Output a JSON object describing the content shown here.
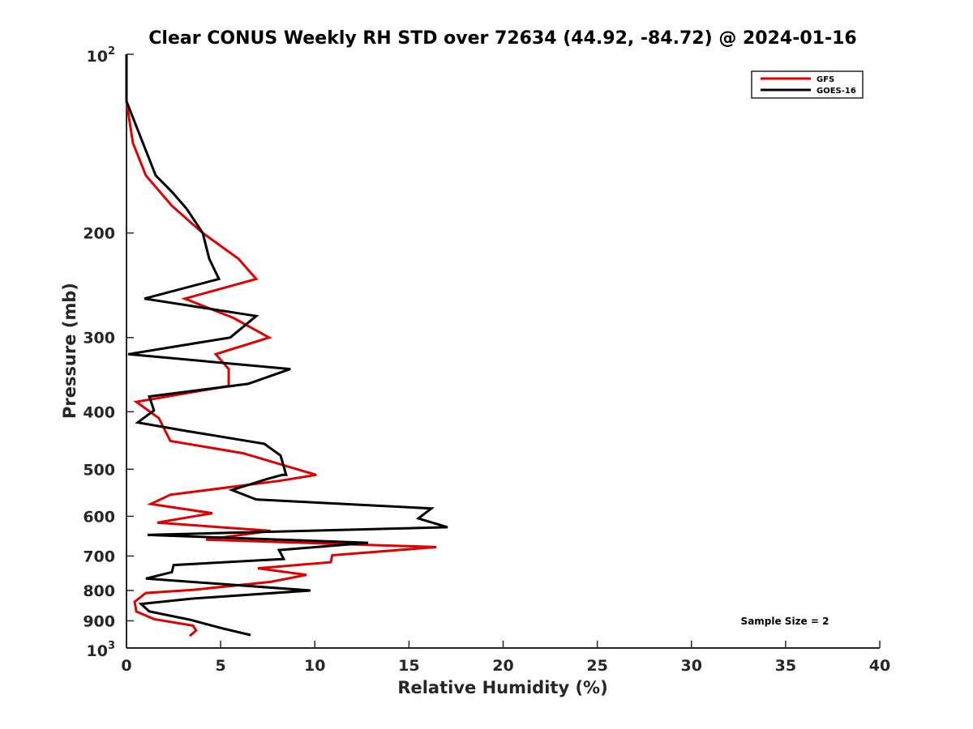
{
  "chart_data": {
    "type": "line",
    "title": "Clear CONUS Weekly RH STD over 72634 (44.92, -84.72) @ 2024-01-16",
    "xlabel": "Relative Humidity (%)",
    "ylabel": "Pressure (mb)",
    "xlim": [
      0,
      40
    ],
    "ylim": [
      100,
      1000
    ],
    "yscale": "log",
    "yreversed": true,
    "grid": false,
    "legend_placement": "top-right",
    "xticks": [
      0,
      5,
      10,
      15,
      20,
      25,
      30,
      35,
      40
    ],
    "xtick_labels": [
      "0",
      "5",
      "10",
      "15",
      "20",
      "25",
      "30",
      "35",
      "40"
    ],
    "yticks": [
      200,
      300,
      400,
      500,
      600,
      700,
      800,
      900
    ],
    "ytick_labels": [
      "200",
      "300",
      "400",
      "500",
      "600",
      "700",
      "800",
      "900"
    ],
    "ytick_top": {
      "base": "10",
      "exp": "2"
    },
    "ytick_bottom": {
      "base": "10",
      "exp": "3"
    },
    "annotation": "Sample Size = 2",
    "series": [
      {
        "name": "GFS",
        "color": "#e00000",
        "points": [
          [
            0.0,
            120
          ],
          [
            0.34,
            141
          ],
          [
            1.03,
            160
          ],
          [
            2.41,
            180
          ],
          [
            4.05,
            200
          ],
          [
            5.94,
            221
          ],
          [
            6.89,
            239
          ],
          [
            3.1,
            258
          ],
          [
            5.68,
            278
          ],
          [
            7.58,
            300
          ],
          [
            4.74,
            320
          ],
          [
            5.43,
            339
          ],
          [
            5.43,
            362
          ],
          [
            0.52,
            385
          ],
          [
            1.72,
            410
          ],
          [
            2.33,
            448
          ],
          [
            6.2,
            470
          ],
          [
            10.08,
            511
          ],
          [
            8.1,
            523
          ],
          [
            2.33,
            552
          ],
          [
            1.29,
            572
          ],
          [
            4.56,
            593
          ],
          [
            1.64,
            615
          ],
          [
            7.66,
            635
          ],
          [
            4.22,
            657
          ],
          [
            16.45,
            676
          ],
          [
            10.93,
            698
          ],
          [
            10.85,
            717
          ],
          [
            6.98,
            734
          ],
          [
            9.56,
            753
          ],
          [
            7.66,
            774
          ],
          [
            3.53,
            798
          ],
          [
            1.03,
            808
          ],
          [
            0.43,
            836
          ],
          [
            0.52,
            868
          ],
          [
            1.46,
            894
          ],
          [
            3.53,
            917
          ],
          [
            3.7,
            934
          ],
          [
            3.36,
            955
          ]
        ]
      },
      {
        "name": "GOES-16",
        "color": "#000000",
        "points": [
          [
            0.0,
            100
          ],
          [
            0.0,
            120
          ],
          [
            1.55,
            160
          ],
          [
            2.45,
            171
          ],
          [
            3.19,
            182
          ],
          [
            4.05,
            200
          ],
          [
            4.39,
            221
          ],
          [
            4.91,
            239
          ],
          [
            0.95,
            258
          ],
          [
            6.89,
            276
          ],
          [
            5.51,
            300
          ],
          [
            0.09,
            320
          ],
          [
            8.7,
            339
          ],
          [
            6.46,
            359
          ],
          [
            1.21,
            377
          ],
          [
            1.46,
            398
          ],
          [
            0.6,
            417
          ],
          [
            3.19,
            431
          ],
          [
            7.32,
            453
          ],
          [
            8.18,
            474
          ],
          [
            8.48,
            511
          ],
          [
            8.27,
            511
          ],
          [
            7.49,
            519
          ],
          [
            5.6,
            542
          ],
          [
            6.89,
            562
          ],
          [
            16.19,
            582
          ],
          [
            15.5,
            605
          ],
          [
            17.05,
            626
          ],
          [
            1.12,
            645
          ],
          [
            12.83,
            665
          ],
          [
            8.1,
            684
          ],
          [
            8.35,
            708
          ],
          [
            2.5,
            725
          ],
          [
            2.41,
            745
          ],
          [
            1.03,
            764
          ],
          [
            9.77,
            800
          ],
          [
            3.44,
            826
          ],
          [
            0.77,
            843
          ],
          [
            1.21,
            868
          ],
          [
            3.44,
            897
          ],
          [
            4.65,
            919
          ],
          [
            5.17,
            928
          ],
          [
            6.59,
            951
          ]
        ]
      }
    ]
  }
}
